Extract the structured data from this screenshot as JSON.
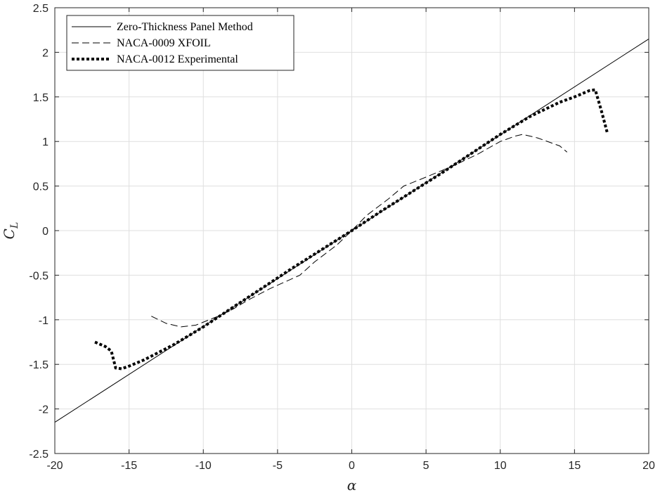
{
  "chart_data": {
    "type": "line",
    "title": "",
    "xlabel": "α",
    "ylabel": "C",
    "ylabel_subscript": "L",
    "xlim": [
      -20,
      20
    ],
    "ylim": [
      -2.5,
      2.5
    ],
    "xticks": [
      -20,
      -15,
      -10,
      -5,
      0,
      5,
      10,
      15,
      20
    ],
    "yticks": [
      -2.5,
      -2,
      -1.5,
      -1,
      -0.5,
      0,
      0.5,
      1,
      1.5,
      2,
      2.5
    ],
    "xtick_labels": [
      "-20",
      "-15",
      "-10",
      "-5",
      "0",
      "5",
      "10",
      "15",
      "20"
    ],
    "ytick_labels": [
      "-2.5",
      "-2",
      "-1.5",
      "-1",
      "-0.5",
      "0",
      "0.5",
      "1",
      "1.5",
      "2",
      "2.5"
    ],
    "grid": true,
    "legend_position": "top-left",
    "series": [
      {
        "name": "Zero-Thickness Panel Method",
        "style": "solid",
        "color": "#000000",
        "x": [
          -20,
          20
        ],
        "y": [
          -2.15,
          2.15
        ]
      },
      {
        "name": "NACA-0009 XFOIL",
        "style": "dashed",
        "color": "#000000",
        "x": [
          -13.5,
          -12.5,
          -11.5,
          -10.5,
          -9,
          -8,
          -7,
          -5.5,
          -3.5,
          -2.5,
          -1,
          0,
          1,
          2.5,
          3.5,
          5,
          7,
          8.5,
          10,
          11,
          11.5,
          12.5,
          14,
          14.5
        ],
        "y": [
          -0.96,
          -1.04,
          -1.08,
          -1.06,
          -0.96,
          -0.88,
          -0.78,
          -0.65,
          -0.5,
          -0.35,
          -0.16,
          0,
          0.17,
          0.36,
          0.5,
          0.6,
          0.74,
          0.86,
          1.0,
          1.06,
          1.08,
          1.04,
          0.95,
          0.88
        ]
      },
      {
        "name": "NACA-0012 Experimental",
        "style": "dotted",
        "color": "#000000",
        "x": [
          -17.3,
          -16.6,
          -16.2,
          -15.9,
          -15.5,
          -15,
          -14,
          -12,
          -10,
          -8,
          -6,
          -4,
          -2,
          0,
          2,
          4,
          6,
          8,
          10,
          12,
          14,
          15,
          16,
          16.4,
          16.8,
          17.2
        ],
        "y": [
          -1.25,
          -1.3,
          -1.35,
          -1.54,
          -1.55,
          -1.52,
          -1.45,
          -1.28,
          -1.08,
          -0.86,
          -0.64,
          -0.42,
          -0.21,
          0,
          0.22,
          0.43,
          0.64,
          0.86,
          1.08,
          1.28,
          1.44,
          1.5,
          1.57,
          1.58,
          1.35,
          1.1
        ]
      }
    ]
  }
}
